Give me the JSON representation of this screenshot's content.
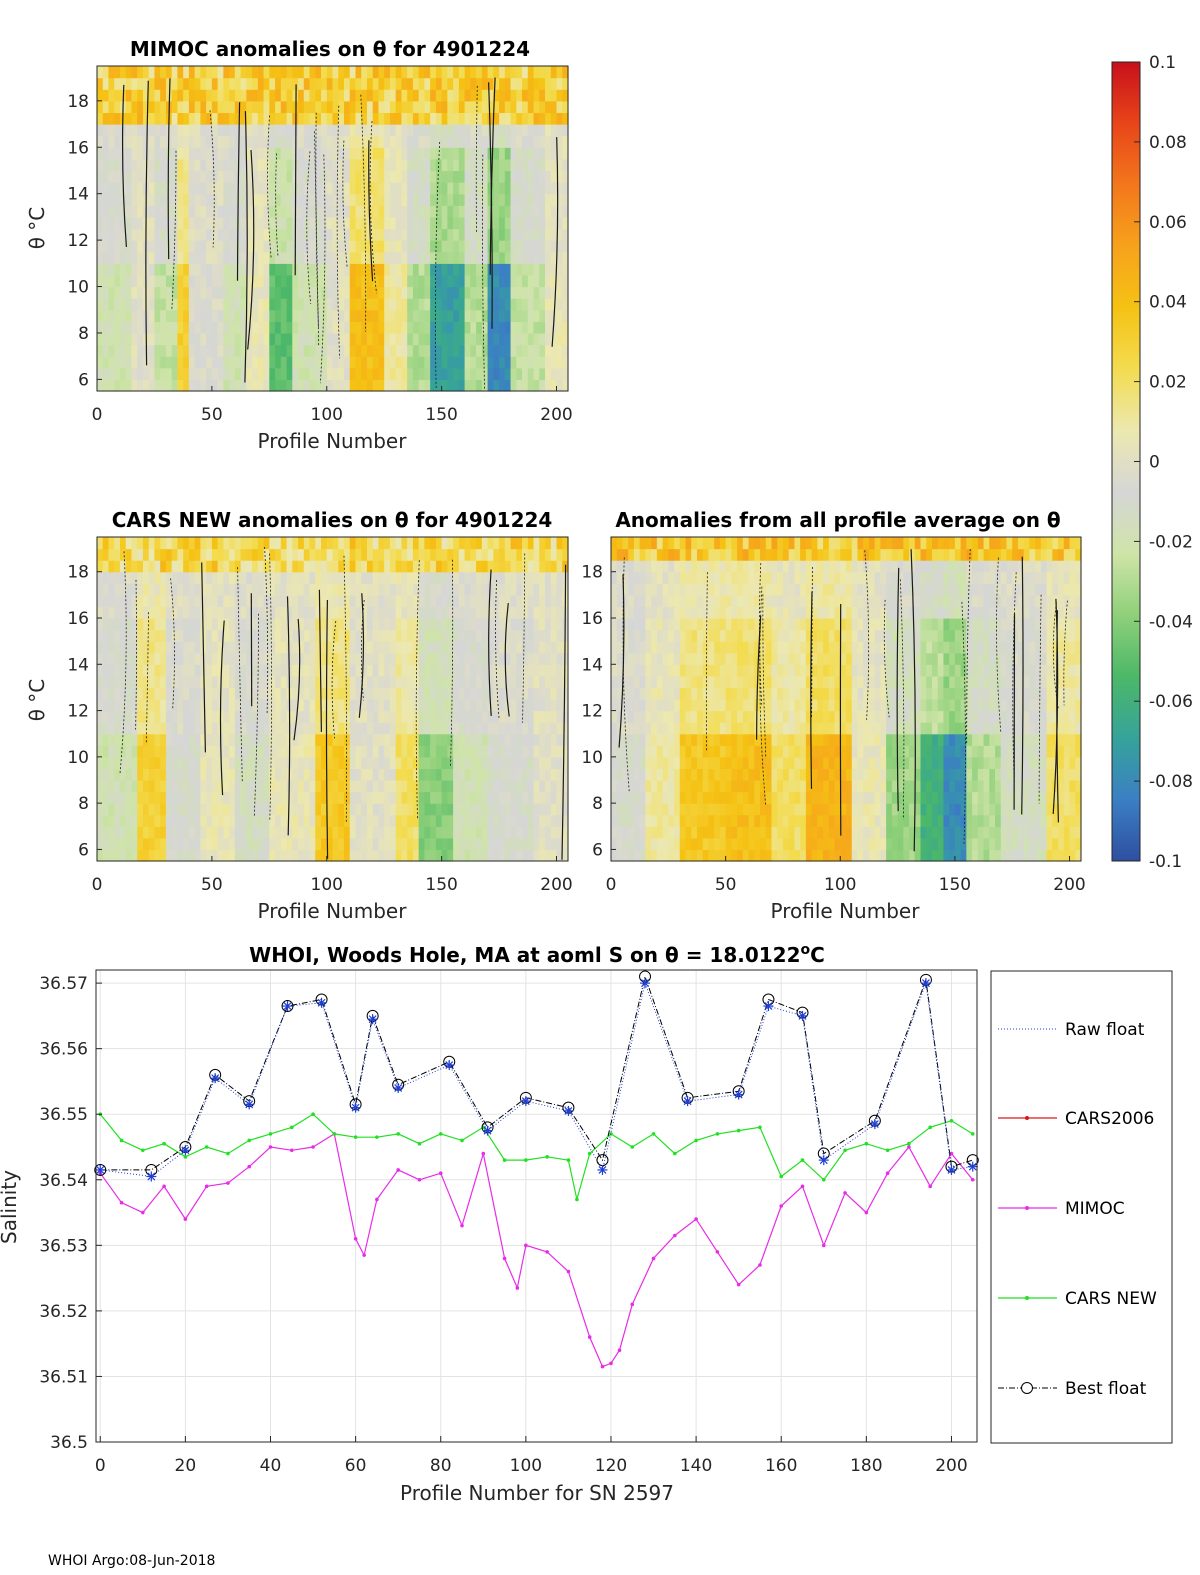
{
  "footer": "WHOI Argo:08-Jun-2018",
  "colorbar": {
    "ticks": [
      0.1,
      0.08,
      0.06,
      0.04,
      0.02,
      0,
      -0.02,
      -0.04,
      -0.06,
      -0.08,
      -0.1
    ],
    "tick_labels": [
      "0.1",
      "0.08",
      "0.06",
      "0.04",
      "0.02",
      "0",
      "-0.02",
      "-0.04",
      "-0.06",
      "-0.08",
      "-0.1"
    ],
    "range": [
      -0.1,
      0.1
    ],
    "colors": [
      "#2e4fa0",
      "#3b7fc4",
      "#36a39a",
      "#4cb868",
      "#8fd07a",
      "#cfe4a8",
      "#d6d6d6",
      "#ece8b0",
      "#f3dc50",
      "#f5c214",
      "#f6a21c",
      "#f3771c",
      "#e8451a",
      "#c8101c"
    ]
  },
  "chart_data": [
    {
      "id": "mimoc",
      "type": "heatmap",
      "title": "MIMOC anomalies on θ  for 4901224",
      "xlabel": "Profile Number",
      "ylabel": "θ °C",
      "xlim": [
        0,
        205
      ],
      "ylim": [
        5.5,
        19.5
      ],
      "xticks": [
        0,
        50,
        100,
        150,
        200
      ],
      "yticks": [
        6,
        8,
        10,
        12,
        14,
        16,
        18
      ],
      "bands": [
        {
          "x": [
            0,
            15
          ],
          "value": -0.02
        },
        {
          "x": [
            15,
            25
          ],
          "value": 0.0
        },
        {
          "x": [
            25,
            35
          ],
          "value": -0.025
        },
        {
          "x": [
            35,
            40
          ],
          "value": 0.03
        },
        {
          "x": [
            40,
            55
          ],
          "value": -0.005
        },
        {
          "x": [
            55,
            65
          ],
          "value": -0.02
        },
        {
          "x": [
            65,
            75
          ],
          "value": 0.005
        },
        {
          "x": [
            75,
            85
          ],
          "value": -0.05
        },
        {
          "x": [
            85,
            100
          ],
          "value": -0.02
        },
        {
          "x": [
            100,
            110
          ],
          "value": 0.0
        },
        {
          "x": [
            110,
            125
          ],
          "value": 0.04
        },
        {
          "x": [
            125,
            135
          ],
          "value": 0.01
        },
        {
          "x": [
            135,
            145
          ],
          "value": -0.03
        },
        {
          "x": [
            145,
            160
          ],
          "value": -0.07
        },
        {
          "x": [
            160,
            170
          ],
          "value": -0.03
        },
        {
          "x": [
            170,
            180
          ],
          "value": -0.08
        },
        {
          "x": [
            180,
            195
          ],
          "value": -0.025
        },
        {
          "x": [
            195,
            205
          ],
          "value": 0.005
        }
      ],
      "top_band": {
        "theta_min": 17,
        "value": 0.025
      }
    },
    {
      "id": "cars",
      "type": "heatmap",
      "title": "CARS NEW anomalies on θ for 4901224",
      "xlabel": "Profile Number",
      "ylabel": "θ °C",
      "xlim": [
        0,
        205
      ],
      "ylim": [
        5.5,
        19.5
      ],
      "xticks": [
        0,
        50,
        100,
        150,
        200
      ],
      "yticks": [
        6,
        8,
        10,
        12,
        14,
        16,
        18
      ],
      "bands": [
        {
          "x": [
            0,
            18
          ],
          "value": -0.02
        },
        {
          "x": [
            18,
            30
          ],
          "value": 0.03
        },
        {
          "x": [
            30,
            45
          ],
          "value": -0.01
        },
        {
          "x": [
            45,
            60
          ],
          "value": 0.005
        },
        {
          "x": [
            60,
            75
          ],
          "value": -0.015
        },
        {
          "x": [
            75,
            95
          ],
          "value": 0.005
        },
        {
          "x": [
            95,
            110
          ],
          "value": 0.035
        },
        {
          "x": [
            110,
            130
          ],
          "value": 0.0
        },
        {
          "x": [
            130,
            140
          ],
          "value": 0.02
        },
        {
          "x": [
            140,
            155
          ],
          "value": -0.04
        },
        {
          "x": [
            155,
            170
          ],
          "value": -0.02
        },
        {
          "x": [
            170,
            190
          ],
          "value": -0.01
        },
        {
          "x": [
            190,
            205
          ],
          "value": 0.0
        }
      ],
      "top_band": {
        "theta_min": 18,
        "value": 0.02
      }
    },
    {
      "id": "allavg",
      "type": "heatmap",
      "title": "Anomalies from all profile average on θ",
      "xlabel": "Profile Number",
      "ylabel": "",
      "xlim": [
        0,
        205
      ],
      "ylim": [
        5.5,
        19.5
      ],
      "xticks": [
        0,
        50,
        100,
        150,
        200
      ],
      "yticks": [
        6,
        8,
        10,
        12,
        14,
        16,
        18
      ],
      "bands": [
        {
          "x": [
            0,
            15
          ],
          "value": -0.01
        },
        {
          "x": [
            15,
            30
          ],
          "value": 0.01
        },
        {
          "x": [
            30,
            50
          ],
          "value": 0.035
        },
        {
          "x": [
            50,
            70
          ],
          "value": 0.04
        },
        {
          "x": [
            70,
            85
          ],
          "value": 0.02
        },
        {
          "x": [
            85,
            105
          ],
          "value": 0.045
        },
        {
          "x": [
            105,
            120
          ],
          "value": 0.005
        },
        {
          "x": [
            120,
            135
          ],
          "value": -0.035
        },
        {
          "x": [
            135,
            145
          ],
          "value": -0.06
        },
        {
          "x": [
            145,
            155
          ],
          "value": -0.08
        },
        {
          "x": [
            155,
            170
          ],
          "value": -0.03
        },
        {
          "x": [
            170,
            190
          ],
          "value": -0.015
        },
        {
          "x": [
            190,
            205
          ],
          "value": 0.02
        }
      ],
      "top_band": {
        "theta_min": 18.3,
        "value": 0.03
      }
    },
    {
      "id": "salinity",
      "type": "line",
      "title": "WHOI, Woods Hole, MA at aoml S on θ = 18.0122°C",
      "title_main": "WHOI, Woods Hole, MA at aoml S on θ = 18.0122",
      "title_unit": "C",
      "xlabel": "Profile Number for SN 2597",
      "ylabel": "Salinity",
      "xlim": [
        -1,
        206
      ],
      "ylim": [
        36.5,
        36.572
      ],
      "xticks": [
        0,
        20,
        40,
        60,
        80,
        100,
        120,
        140,
        160,
        180,
        200
      ],
      "yticks": [
        36.5,
        36.51,
        36.52,
        36.53,
        36.54,
        36.55,
        36.56,
        36.57
      ],
      "ytick_labels": [
        "36.5",
        "36.51",
        "36.52",
        "36.53",
        "36.54",
        "36.55",
        "36.56",
        "36.57"
      ],
      "grid": true,
      "legend_position": "outside-right",
      "legend": [
        "Raw float",
        "CARS2006",
        "MIMOC",
        "CARS NEW",
        "Best float"
      ],
      "series": [
        {
          "name": "Raw float",
          "color": "#1f3fd8",
          "x": [
            0,
            12,
            20,
            27,
            35,
            44,
            52,
            60,
            64,
            70,
            82,
            91,
            100,
            110,
            118,
            128,
            138,
            150,
            157,
            165,
            170,
            182,
            194,
            200,
            205
          ],
          "values": [
            36.5415,
            36.5405,
            36.5445,
            36.5555,
            36.5515,
            36.5665,
            36.567,
            36.551,
            36.5645,
            36.554,
            36.5575,
            36.5475,
            36.552,
            36.5505,
            36.5415,
            36.57,
            36.552,
            36.553,
            36.5665,
            36.565,
            36.543,
            36.5485,
            36.57,
            36.5415,
            36.542
          ]
        },
        {
          "name": "CARS2006",
          "color": "#d61a1a",
          "x": [],
          "values": []
        },
        {
          "name": "MIMOC",
          "color": "#e82ce8",
          "x": [
            0,
            5,
            10,
            15,
            20,
            25,
            30,
            35,
            40,
            45,
            50,
            55,
            60,
            62,
            65,
            70,
            75,
            80,
            85,
            90,
            95,
            98,
            100,
            105,
            110,
            115,
            118,
            120,
            122,
            125,
            130,
            135,
            140,
            145,
            150,
            155,
            160,
            165,
            170,
            175,
            180,
            185,
            190,
            195,
            200,
            205
          ],
          "values": [
            36.541,
            36.5365,
            36.535,
            36.539,
            36.534,
            36.539,
            36.5395,
            36.542,
            36.545,
            36.5445,
            36.545,
            36.547,
            36.531,
            36.5285,
            36.537,
            36.5415,
            36.54,
            36.541,
            36.533,
            36.544,
            36.528,
            36.5235,
            36.53,
            36.529,
            36.526,
            36.516,
            36.5115,
            36.512,
            36.514,
            36.521,
            36.528,
            36.5315,
            36.534,
            36.529,
            36.524,
            36.527,
            36.536,
            36.539,
            36.53,
            36.538,
            36.535,
            36.541,
            36.545,
            36.539,
            36.544,
            36.54
          ]
        },
        {
          "name": "CARS NEW",
          "color": "#22e022",
          "x": [
            0,
            5,
            10,
            15,
            20,
            25,
            30,
            35,
            40,
            45,
            50,
            55,
            60,
            65,
            70,
            75,
            80,
            85,
            90,
            95,
            100,
            105,
            110,
            112,
            115,
            120,
            125,
            130,
            135,
            140,
            145,
            150,
            155,
            160,
            165,
            170,
            175,
            180,
            185,
            190,
            195,
            200,
            205
          ],
          "values": [
            36.55,
            36.546,
            36.5445,
            36.5455,
            36.5435,
            36.545,
            36.544,
            36.546,
            36.547,
            36.548,
            36.55,
            36.547,
            36.5465,
            36.5465,
            36.547,
            36.5455,
            36.547,
            36.546,
            36.548,
            36.543,
            36.543,
            36.5435,
            36.543,
            36.537,
            36.544,
            36.547,
            36.545,
            36.547,
            36.544,
            36.546,
            36.547,
            36.5475,
            36.548,
            36.5405,
            36.543,
            36.54,
            36.5445,
            36.5455,
            36.5445,
            36.5455,
            36.548,
            36.549,
            36.547
          ]
        },
        {
          "name": "Best float",
          "color": "#000000",
          "x": [
            0,
            12,
            20,
            27,
            35,
            44,
            52,
            60,
            64,
            70,
            82,
            91,
            100,
            110,
            118,
            128,
            138,
            150,
            157,
            165,
            170,
            182,
            194,
            200,
            205
          ],
          "values": [
            36.5415,
            36.5415,
            36.545,
            36.556,
            36.552,
            36.5665,
            36.5675,
            36.5515,
            36.565,
            36.5545,
            36.558,
            36.548,
            36.5525,
            36.551,
            36.543,
            36.571,
            36.5525,
            36.5535,
            36.5675,
            36.5655,
            36.544,
            36.549,
            36.5705,
            36.542,
            36.543
          ]
        }
      ]
    }
  ]
}
